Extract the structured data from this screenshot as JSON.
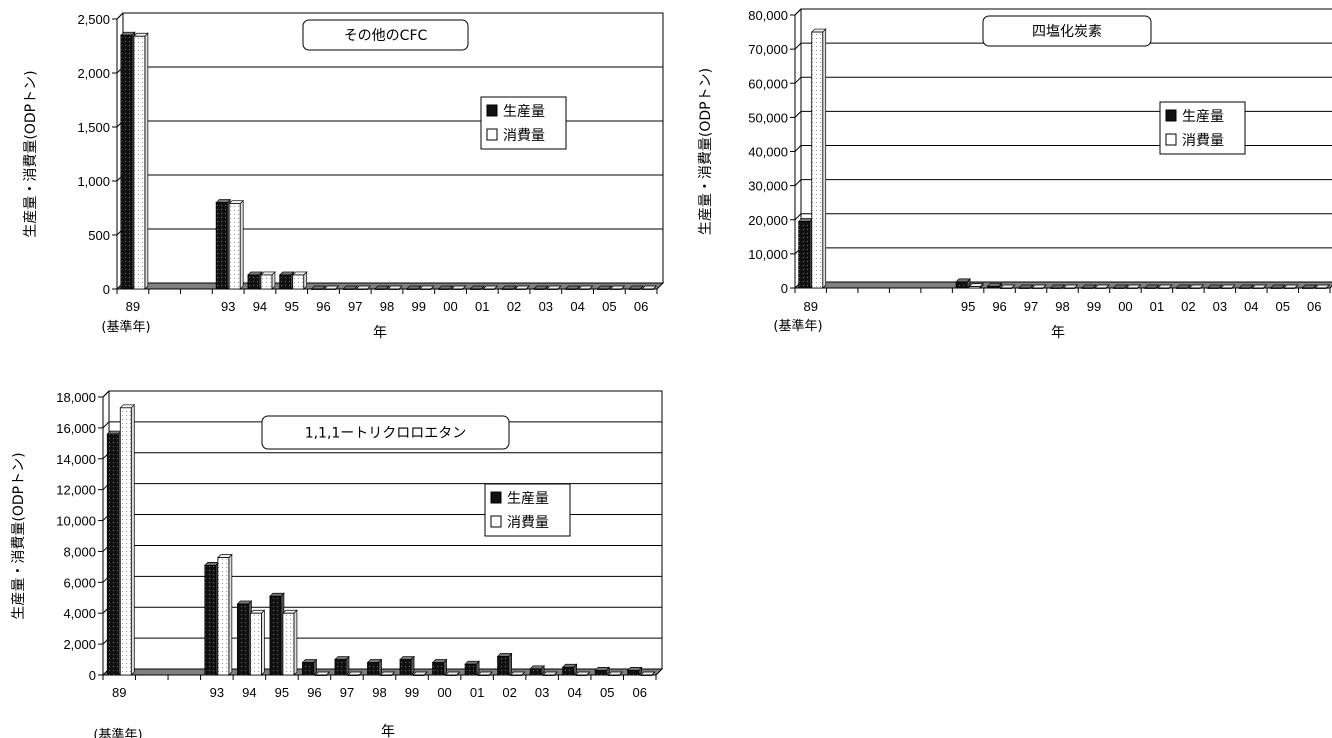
{
  "colors": {
    "production": "#111111",
    "consumption": "#ffffff",
    "grid": "#000000",
    "floor": "#808080"
  },
  "chart_data": [
    {
      "type": "bar",
      "title": "その他のCFC",
      "xlabel": "年",
      "ylabel": "生産量・消費量(ODPトン)",
      "x_sublabel": "(基準年)",
      "categories": [
        "89",
        "",
        "",
        "93",
        "94",
        "95",
        "96",
        "97",
        "98",
        "99",
        "00",
        "01",
        "02",
        "03",
        "04",
        "05",
        "06"
      ],
      "yticks": [
        "0",
        "500",
        "1,000",
        "1,500",
        "2,000",
        "2,500"
      ],
      "ylim": [
        0,
        2500
      ],
      "legend_position": "right",
      "series": [
        {
          "name": "生産量",
          "values": [
            2350,
            null,
            null,
            800,
            130,
            130,
            0,
            0,
            0,
            0,
            0,
            0,
            0,
            0,
            0,
            0,
            0
          ]
        },
        {
          "name": "消費量",
          "values": [
            2340,
            null,
            null,
            790,
            130,
            130,
            0,
            0,
            0,
            0,
            0,
            0,
            0,
            0,
            0,
            0,
            0
          ]
        }
      ]
    },
    {
      "type": "bar",
      "title": "四塩化炭素",
      "xlabel": "年",
      "ylabel": "生産量・消費量(ODPトン)",
      "x_sublabel": "(基準年)",
      "categories": [
        "89",
        "",
        "",
        "",
        "",
        "95",
        "96",
        "97",
        "98",
        "99",
        "00",
        "01",
        "02",
        "03",
        "04",
        "05",
        "06"
      ],
      "yticks": [
        "0",
        "10,000",
        "20,000",
        "30,000",
        "40,000",
        "50,000",
        "60,000",
        "70,000",
        "80,000"
      ],
      "ylim": [
        0,
        80000
      ],
      "legend_position": "right",
      "series": [
        {
          "name": "生産量",
          "values": [
            19500,
            null,
            null,
            null,
            null,
            1800,
            500,
            0,
            0,
            0,
            0,
            0,
            0,
            0,
            0,
            0,
            0
          ]
        },
        {
          "name": "消費量",
          "values": [
            75000,
            null,
            null,
            null,
            null,
            400,
            0,
            0,
            0,
            0,
            0,
            0,
            0,
            0,
            0,
            0,
            0
          ]
        }
      ]
    },
    {
      "type": "bar",
      "title": "1,1,1ートリクロロエタン",
      "xlabel": "年",
      "ylabel": "生産量・消費量(ODPトン)",
      "x_sublabel": "(基準年)",
      "categories": [
        "89",
        "",
        "",
        "93",
        "94",
        "95",
        "96",
        "97",
        "98",
        "99",
        "00",
        "01",
        "02",
        "03",
        "04",
        "05",
        "06"
      ],
      "yticks": [
        "0",
        "2,000",
        "4,000",
        "6,000",
        "8,000",
        "10,000",
        "12,000",
        "14,000",
        "16,000",
        "18,000"
      ],
      "ylim": [
        0,
        18000
      ],
      "legend_position": "right",
      "series": [
        {
          "name": "生産量",
          "values": [
            15600,
            null,
            null,
            7100,
            4600,
            5100,
            800,
            1000,
            800,
            1000,
            800,
            700,
            1200,
            400,
            500,
            300,
            300
          ]
        },
        {
          "name": "消費量",
          "values": [
            17300,
            null,
            null,
            7600,
            4000,
            4000,
            0,
            0,
            0,
            0,
            0,
            0,
            0,
            0,
            0,
            0,
            0
          ]
        }
      ]
    }
  ]
}
